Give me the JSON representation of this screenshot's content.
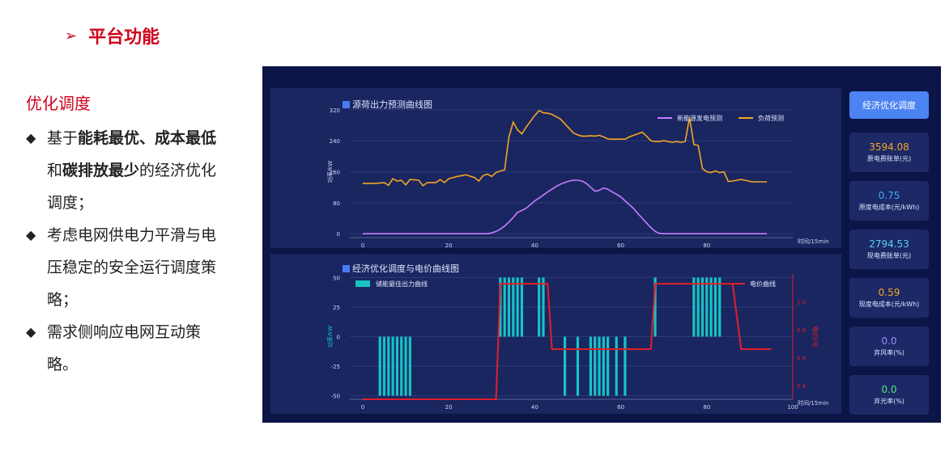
{
  "slide": {
    "title": "平台功能",
    "section_heading": "优化调度",
    "bullet1": {
      "p1": "基于",
      "b1": "能耗最优",
      "s1": "、",
      "b2": "成本最低",
      "p2": "和",
      "b3": "碳排放最少",
      "p3": "的经济优化调度；"
    },
    "bullet2": "考虑电网供电力平滑与电压稳定的安全运行调度策略；",
    "bullet3": "需求侧响应电网互动策略。"
  },
  "dashboard": {
    "button_label": "经济优化调度",
    "cards": [
      {
        "value": "3594.08",
        "label": "原电费账单(元)",
        "color": "#f5a623"
      },
      {
        "value": "0.75",
        "label": "原度电成本(元/kWh)",
        "color": "#3fa9f5"
      },
      {
        "value": "2794.53",
        "label": "现电费账单(元)",
        "color": "#5ad0f5"
      },
      {
        "value": "0.59",
        "label": "现度电成本(元/kWh)",
        "color": "#f5a623"
      },
      {
        "value": "0.0",
        "label": "弃风率(%)",
        "color": "#9b8cff"
      },
      {
        "value": "0.0",
        "label": "弃光率(%)",
        "color": "#5be37a"
      }
    ]
  },
  "chart_data": [
    {
      "type": "line",
      "title": "源荷出力预测曲线图",
      "xlabel": "时间/15min",
      "ylabel": "功率/kW",
      "xlim": [
        -3,
        100
      ],
      "ylim": [
        -10,
        330
      ],
      "xticks": [
        "0",
        "20",
        "40",
        "60",
        "80"
      ],
      "yticks": [
        "0",
        "80",
        "160",
        "240",
        "320"
      ],
      "legend_position": "top-right",
      "series": [
        {
          "name": "新能源发电预测",
          "color": "#c77dff",
          "x": [
            0,
            29,
            30,
            31,
            32,
            33,
            34,
            35,
            36,
            37,
            38,
            39,
            40,
            41,
            42,
            43,
            44,
            45,
            46,
            47,
            48,
            49,
            50,
            51,
            52,
            53,
            54,
            55,
            56,
            57,
            58,
            59,
            60,
            61,
            62,
            63,
            64,
            65,
            66,
            67,
            68,
            69,
            70,
            94
          ],
          "y": [
            0,
            0,
            2,
            6,
            12,
            20,
            30,
            42,
            55,
            60,
            66,
            75,
            85,
            92,
            100,
            108,
            115,
            122,
            128,
            132,
            136,
            138,
            138,
            136,
            130,
            120,
            110,
            112,
            118,
            115,
            108,
            102,
            95,
            85,
            75,
            65,
            52,
            40,
            28,
            16,
            6,
            1,
            0,
            0
          ]
        },
        {
          "name": "负荷预测",
          "color": "#f5a623",
          "x": [
            0,
            3,
            5,
            6,
            7,
            8,
            9,
            10,
            11,
            13,
            14,
            15,
            17,
            18,
            19,
            20,
            22,
            24,
            26,
            27,
            28,
            29,
            30,
            31,
            32,
            33,
            34,
            35,
            36,
            37,
            38,
            39,
            40,
            41,
            42,
            43,
            44,
            45,
            46,
            47,
            48,
            49,
            50,
            51,
            52,
            53,
            54,
            55,
            56,
            57,
            58,
            59,
            60,
            61,
            62,
            63,
            64,
            65,
            66,
            67,
            68,
            69,
            70,
            71,
            72,
            73,
            74,
            75,
            76,
            77,
            78,
            79,
            80,
            81,
            82,
            83,
            84,
            85,
            86,
            87,
            88,
            89,
            90,
            91,
            92,
            93,
            94
          ],
          "y": [
            130,
            130,
            132,
            125,
            142,
            136,
            138,
            126,
            140,
            138,
            124,
            132,
            132,
            140,
            132,
            142,
            148,
            152,
            145,
            136,
            150,
            154,
            148,
            158,
            162,
            165,
            250,
            288,
            268,
            258,
            275,
            290,
            305,
            318,
            312,
            311,
            308,
            302,
            296,
            284,
            272,
            260,
            255,
            252,
            252,
            253,
            252,
            254,
            250,
            245,
            244,
            244,
            244,
            244,
            250,
            254,
            258,
            262,
            252,
            240,
            238,
            238,
            240,
            238,
            236,
            238,
            236,
            238,
            300,
            230,
            228,
            168,
            160,
            158,
            162,
            158,
            160,
            135,
            136,
            138,
            140,
            138,
            135,
            134,
            134,
            134,
            134
          ]
        }
      ]
    },
    {
      "type": "bar",
      "title": "经济优化调度与电价曲线图",
      "xlabel": "时间/15min",
      "ylabel": "功率/kW",
      "y2label": "电价/元",
      "xlim": [
        -3,
        100
      ],
      "ylim": [
        -53,
        53
      ],
      "y2lim": [
        0.3,
        1.2
      ],
      "xticks": [
        "0",
        "20",
        "40",
        "60",
        "80",
        "100"
      ],
      "yticks": [
        "-50",
        "-25",
        "0",
        "25",
        "50"
      ],
      "y2ticks": [
        "0.4",
        "0.6",
        "0.8",
        "1.0"
      ],
      "legend_position": "top-left and top-right",
      "series": [
        {
          "name": "储能最佳出力曲线",
          "type": "bar",
          "color": "#17c3c4",
          "x": [
            4,
            5,
            6,
            7,
            8,
            9,
            10,
            11,
            32,
            33,
            34,
            35,
            36,
            37,
            41,
            42,
            47,
            50,
            53,
            54,
            55,
            56,
            57,
            59,
            61,
            68,
            77,
            78,
            79,
            80,
            81,
            82,
            83
          ],
          "values": [
            -50,
            -50,
            -50,
            -50,
            -50,
            -50,
            -50,
            -50,
            50,
            50,
            50,
            50,
            50,
            50,
            50,
            50,
            -50,
            -50,
            -50,
            -50,
            -50,
            -50,
            -50,
            -50,
            -50,
            50,
            50,
            50,
            50,
            50,
            50,
            50,
            50
          ]
        },
        {
          "name": "电价曲线",
          "type": "line",
          "axis": "right",
          "color": "#e0202a",
          "x": [
            0,
            31,
            32,
            43,
            44,
            67,
            68,
            86,
            88,
            95
          ],
          "y": [
            0.3,
            0.3,
            1.13,
            1.13,
            0.66,
            0.66,
            1.13,
            1.13,
            0.66,
            0.66
          ]
        }
      ]
    }
  ]
}
